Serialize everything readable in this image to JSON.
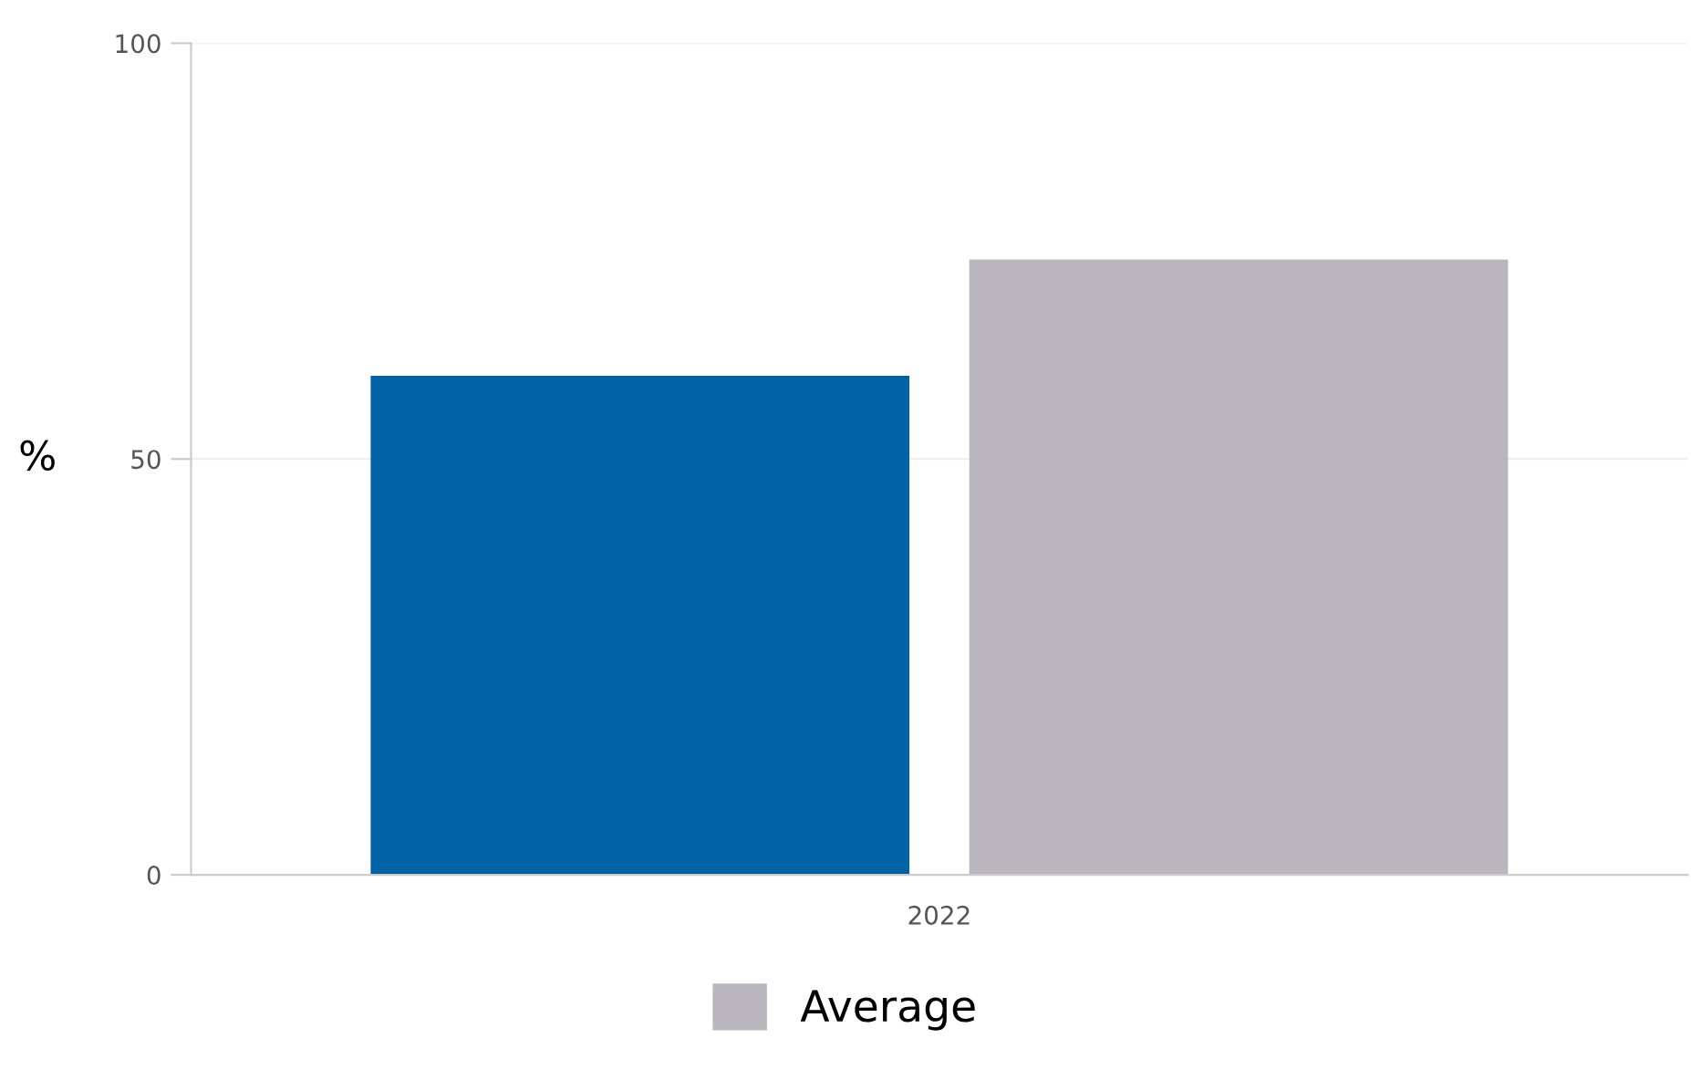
{
  "chart_data": {
    "type": "bar",
    "ylabel": "%",
    "categories": [
      "2022"
    ],
    "series": [
      {
        "color": "#0063a6",
        "values": [
          60
        ]
      },
      {
        "name": "Average",
        "color": "#b9b7bd",
        "values": [
          74
        ]
      }
    ],
    "ylim": [
      0,
      100
    ],
    "yticks": [
      0,
      50,
      100
    ],
    "grid": "y",
    "legend": "bottom"
  }
}
